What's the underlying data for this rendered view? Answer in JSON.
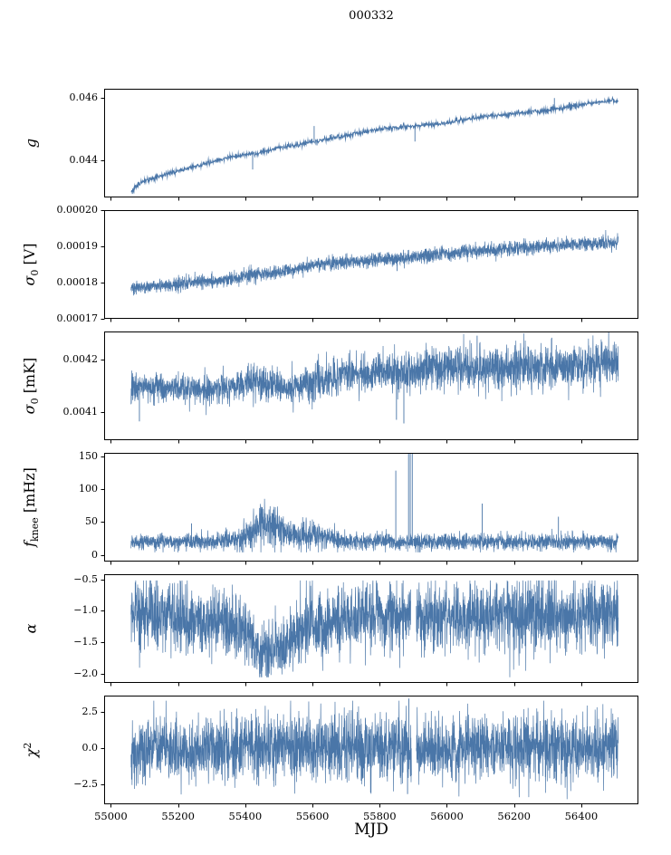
{
  "title": "000332",
  "xlabel": "MJD",
  "style": {
    "line_color": "#4a76a8",
    "axis_color": "#000000",
    "background": "#ffffff"
  },
  "x_axis": {
    "lim": [
      54980,
      56570
    ],
    "ticks": [
      55000,
      55200,
      55400,
      55600,
      55800,
      56000,
      56200,
      56400
    ],
    "tick_labels": [
      "55000",
      "55200",
      "55400",
      "55600",
      "55800",
      "56000",
      "56200",
      "56400"
    ]
  },
  "chart_data": [
    {
      "id": "g",
      "type": "line",
      "ylabel": [
        {
          "t": "g",
          "italic": true
        }
      ],
      "ylim": [
        0.0428,
        0.0463
      ],
      "yticks": [
        0.044,
        0.046
      ],
      "ytick_labels": [
        "0.044",
        "0.046"
      ],
      "x_data_range": [
        55060,
        56510
      ],
      "points": 1450,
      "trend": {
        "x": [
          55060,
          55090,
          55150,
          55250,
          55350,
          55420,
          55500,
          55600,
          55700,
          55800,
          55900,
          56000,
          56100,
          56200,
          56300,
          56400,
          56480,
          56510
        ],
        "y": [
          0.043,
          0.0433,
          0.0435,
          0.0438,
          0.0441,
          0.0442,
          0.0444,
          0.0446,
          0.0448,
          0.045,
          0.0451,
          0.0452,
          0.0454,
          0.0455,
          0.0456,
          0.0458,
          0.0459,
          0.0459
        ],
        "n": [
          5e-05,
          5e-05,
          4e-05,
          4e-05,
          4e-05,
          5e-05,
          4e-05,
          5e-05,
          4e-05,
          4e-05,
          4e-05,
          4e-05,
          4e-05,
          4e-05,
          5e-05,
          4e-05,
          4e-05,
          4e-05
        ]
      },
      "spikes": [
        {
          "x": 55422,
          "y": 0.0437
        },
        {
          "x": 55605,
          "y": 0.0451
        },
        {
          "x": 55905,
          "y": 0.0446
        },
        {
          "x": 56320,
          "y": 0.046
        }
      ],
      "gaps": []
    },
    {
      "id": "sigma0-v",
      "type": "line",
      "ylabel": [
        {
          "t": "σ",
          "italic": true
        },
        {
          "t": "0",
          "sub": true
        },
        {
          "t": " [V]"
        }
      ],
      "ylim": [
        0.00017,
        0.0002
      ],
      "yticks": [
        0.00017,
        0.00018,
        0.00019,
        0.0002
      ],
      "ytick_labels": [
        "0.00017",
        "0.00018",
        "0.00019",
        "0.00020"
      ],
      "x_data_range": [
        55060,
        56510
      ],
      "points": 2800,
      "trend": {
        "x": [
          55060,
          55150,
          55250,
          55350,
          55430,
          55500,
          55600,
          55650,
          55700,
          55800,
          55850,
          55860,
          55900,
          56000,
          56100,
          56200,
          56300,
          56400,
          56510
        ],
        "y": [
          0.0001785,
          0.0001792,
          0.00018,
          0.000181,
          0.0001822,
          0.0001828,
          0.0001846,
          0.0001854,
          0.0001857,
          0.0001864,
          0.0001866,
          0.0001866,
          0.0001872,
          0.000188,
          0.0001888,
          0.0001895,
          0.0001901,
          0.0001906,
          0.000191
        ],
        "n": [
          9e-07,
          9e-07,
          9e-07,
          9e-07,
          1.1e-06,
          9e-07,
          9e-07,
          9e-07,
          9e-07,
          9e-07,
          9e-07,
          9e-07,
          1e-06,
          1e-06,
          1e-06,
          1e-06,
          1e-06,
          1e-06,
          1e-06
        ]
      },
      "spikes": [
        {
          "x": 55852,
          "y": 0.0001832
        },
        {
          "x": 55618,
          "y": 0.0001868
        }
      ],
      "gaps": []
    },
    {
      "id": "sigma0-mk",
      "type": "line",
      "ylabel": [
        {
          "t": "σ",
          "italic": true
        },
        {
          "t": "0",
          "sub": true
        },
        {
          "t": " [mK]"
        }
      ],
      "ylim": [
        0.004046,
        0.004254
      ],
      "yticks": [
        0.0041,
        0.0042
      ],
      "ytick_labels": [
        "0.0041",
        "0.0042"
      ],
      "x_data_range": [
        55060,
        56510
      ],
      "points": 2800,
      "trend": {
        "x": [
          55060,
          55150,
          55250,
          55350,
          55400,
          55430,
          55470,
          55520,
          55570,
          55620,
          55700,
          55800,
          55900,
          56000,
          56100,
          56200,
          56300,
          56400,
          56510
        ],
        "y": [
          0.004148,
          0.004146,
          0.004144,
          0.004146,
          0.004156,
          0.004166,
          0.004152,
          0.004147,
          0.00415,
          0.004163,
          0.004172,
          0.004176,
          0.004178,
          0.004183,
          0.00418,
          0.004186,
          0.004184,
          0.004188,
          0.00419
        ],
        "n": [
          1.3e-05,
          1.3e-05,
          1.3e-05,
          1.4e-05,
          1.6e-05,
          1.8e-05,
          1.6e-05,
          1.4e-05,
          1.5e-05,
          1.8e-05,
          1.8e-05,
          1.9e-05,
          1.9e-05,
          2.1e-05,
          2.1e-05,
          2.1e-05,
          2.1e-05,
          2.1e-05,
          2.1e-05
        ]
      },
      "spikes": [
        {
          "x": 55085,
          "y": 0.004082
        },
        {
          "x": 55850,
          "y": 0.004085
        },
        {
          "x": 55872,
          "y": 0.004078
        },
        {
          "x": 56090,
          "y": 0.004246
        },
        {
          "x": 56312,
          "y": 0.004242
        }
      ],
      "gaps": []
    },
    {
      "id": "fknee",
      "type": "line",
      "ylabel": [
        {
          "t": "f",
          "italic": true
        },
        {
          "t": "knee",
          "sub": true
        },
        {
          "t": " [mHz]"
        }
      ],
      "ylim": [
        -10,
        155
      ],
      "yticks": [
        0,
        50,
        100,
        150
      ],
      "ytick_labels": [
        "0",
        "50",
        "100",
        "150"
      ],
      "x_data_range": [
        55060,
        56510
      ],
      "points": 2800,
      "clip": [
        4,
        158
      ],
      "trend": {
        "x": [
          55060,
          55300,
          55380,
          55415,
          55445,
          55470,
          55500,
          55530,
          55560,
          55590,
          55615,
          55640,
          55680,
          55750,
          55900,
          56000,
          56200,
          56400,
          56510
        ],
        "y": [
          20,
          20,
          22,
          35,
          47,
          46,
          40,
          32,
          27,
          30,
          34,
          27,
          21,
          20,
          20,
          20,
          20,
          20,
          20
        ],
        "n": [
          6,
          6,
          8,
          14,
          17,
          16,
          14,
          12,
          10,
          11,
          12,
          9,
          7,
          6,
          6,
          6,
          6,
          6,
          6
        ]
      },
      "spikes": [
        {
          "x": 55240,
          "y": 48
        },
        {
          "x": 55848,
          "y": 128
        },
        {
          "x": 55886,
          "y": 156
        },
        {
          "x": 55891,
          "y": 156
        },
        {
          "x": 55897,
          "y": 156
        },
        {
          "x": 56105,
          "y": 78
        },
        {
          "x": 56332,
          "y": 58
        }
      ],
      "gaps": []
    },
    {
      "id": "alpha",
      "type": "line",
      "ylabel": [
        {
          "t": "α",
          "italic": true
        }
      ],
      "ylim": [
        -2.15,
        -0.42
      ],
      "yticks": [
        -2.0,
        -1.5,
        -1.0,
        -0.5
      ],
      "ytick_labels": [
        "−2.0",
        "−1.5",
        "−1.0",
        "−0.5"
      ],
      "x_data_range": [
        55060,
        56510
      ],
      "points": 2800,
      "clip": [
        -2.06,
        -0.52
      ],
      "trend": {
        "x": [
          55060,
          55200,
          55320,
          55380,
          55420,
          55460,
          55500,
          55540,
          55570,
          55600,
          55630,
          55660,
          55700,
          55800,
          55900,
          56000,
          56200,
          56400,
          56510
        ],
        "y": [
          -1.05,
          -1.1,
          -1.18,
          -1.3,
          -1.5,
          -1.62,
          -1.6,
          -1.5,
          -1.3,
          -1.15,
          -1.3,
          -1.2,
          -1.1,
          -1.08,
          -1.08,
          -1.08,
          -1.08,
          -1.05,
          -1.05
        ],
        "n": [
          0.27,
          0.28,
          0.28,
          0.27,
          0.24,
          0.22,
          0.22,
          0.24,
          0.26,
          0.27,
          0.26,
          0.27,
          0.27,
          0.28,
          0.28,
          0.28,
          0.28,
          0.27,
          0.27
        ]
      },
      "spikes": [],
      "gaps": [
        [
          55893,
          55909
        ]
      ]
    },
    {
      "id": "chi2",
      "type": "line",
      "ylabel": [
        {
          "t": "χ",
          "italic": true
        },
        {
          "t": "2",
          "sup": true
        }
      ],
      "ylim": [
        -3.9,
        3.6
      ],
      "yticks": [
        -2.5,
        0.0,
        2.5
      ],
      "ytick_labels": [
        "−2.5",
        "0.0",
        "2.5"
      ],
      "x_data_range": [
        55060,
        56510
      ],
      "points": 2800,
      "clip": [
        -3.55,
        3.25
      ],
      "trend": {
        "x": [
          55060,
          56510
        ],
        "y": [
          0,
          0
        ],
        "n": [
          1.1,
          1.1
        ]
      },
      "spikes": [
        {
          "x": 55887,
          "y": 3.4
        },
        {
          "x": 55883,
          "y": -3.2
        }
      ],
      "gaps": [
        [
          55895,
          55909
        ]
      ]
    }
  ]
}
